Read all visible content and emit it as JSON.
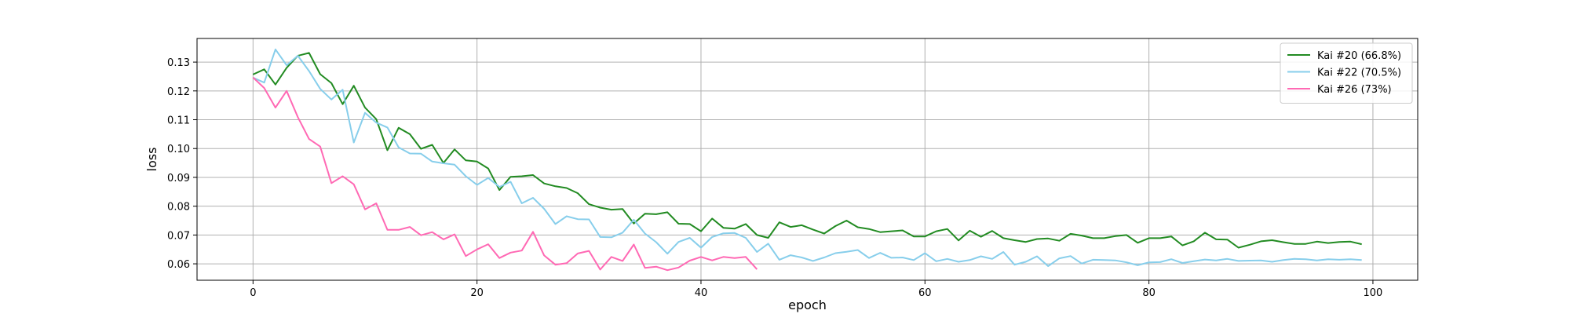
{
  "chart_data": {
    "type": "line",
    "title": "",
    "xlabel": "epoch",
    "ylabel": "loss",
    "xlim": [
      -5,
      104
    ],
    "ylim": [
      0.0543,
      0.1382
    ],
    "xticks": [
      0,
      20,
      40,
      60,
      80,
      100
    ],
    "yticks": [
      0.06,
      0.07,
      0.08,
      0.09,
      0.1,
      0.11,
      0.12,
      0.13
    ],
    "ytick_labels": [
      "0.06",
      "0.07",
      "0.08",
      "0.09",
      "0.10",
      "0.11",
      "0.12",
      "0.13"
    ],
    "grid": true,
    "legend_position": "top-right",
    "series": [
      {
        "name": "Kai #20 (66.8%)",
        "color": "#228b22",
        "values": [
          0.1257,
          0.1275,
          0.1222,
          0.128,
          0.1322,
          0.1332,
          0.1258,
          0.1227,
          0.1154,
          0.1218,
          0.1142,
          0.1102,
          0.0994,
          0.1072,
          0.105,
          0.0999,
          0.1013,
          0.095,
          0.0997,
          0.0959,
          0.0955,
          0.0931,
          0.0856,
          0.0902,
          0.0904,
          0.0908,
          0.0879,
          0.0869,
          0.0863,
          0.0845,
          0.0807,
          0.0795,
          0.0788,
          0.079,
          0.074,
          0.0774,
          0.0772,
          0.0779,
          0.0739,
          0.0738,
          0.0713,
          0.0757,
          0.0725,
          0.0722,
          0.0738,
          0.07,
          0.069,
          0.0744,
          0.0728,
          0.0734,
          0.0719,
          0.0705,
          0.0731,
          0.075,
          0.0727,
          0.0721,
          0.071,
          0.0713,
          0.0716,
          0.0695,
          0.0695,
          0.0713,
          0.0721,
          0.0681,
          0.0715,
          0.0694,
          0.0714,
          0.0689,
          0.0682,
          0.0676,
          0.0686,
          0.0688,
          0.068,
          0.0704,
          0.0698,
          0.0689,
          0.0689,
          0.0696,
          0.07,
          0.0673,
          0.0689,
          0.0689,
          0.0695,
          0.0664,
          0.0678,
          0.0708,
          0.0685,
          0.0684,
          0.0656,
          0.0666,
          0.0678,
          0.0682,
          0.0675,
          0.0669,
          0.0669,
          0.0677,
          0.0672,
          0.0676,
          0.0677,
          0.0668
        ]
      },
      {
        "name": "Kai #22 (70.5%)",
        "color": "#87ceeb",
        "values": [
          0.1246,
          0.1229,
          0.1344,
          0.1289,
          0.1322,
          0.1269,
          0.1207,
          0.117,
          0.1204,
          0.1021,
          0.1124,
          0.109,
          0.1073,
          0.1004,
          0.0983,
          0.0982,
          0.0955,
          0.0949,
          0.0944,
          0.0904,
          0.0874,
          0.0898,
          0.0867,
          0.0885,
          0.081,
          0.0829,
          0.0791,
          0.0738,
          0.0765,
          0.0755,
          0.0754,
          0.0693,
          0.0692,
          0.0708,
          0.0753,
          0.0705,
          0.0675,
          0.0635,
          0.0676,
          0.069,
          0.0656,
          0.0693,
          0.0706,
          0.0707,
          0.069,
          0.0641,
          0.067,
          0.0614,
          0.063,
          0.0622,
          0.061,
          0.0622,
          0.0637,
          0.0642,
          0.0648,
          0.062,
          0.0638,
          0.0621,
          0.0622,
          0.0613,
          0.0637,
          0.0609,
          0.0617,
          0.0607,
          0.0613,
          0.0626,
          0.0617,
          0.0641,
          0.0597,
          0.0607,
          0.0626,
          0.0592,
          0.0619,
          0.0627,
          0.0601,
          0.0614,
          0.0613,
          0.0612,
          0.0605,
          0.0595,
          0.0605,
          0.0606,
          0.0616,
          0.0603,
          0.0609,
          0.0615,
          0.0612,
          0.0617,
          0.061,
          0.0611,
          0.0612,
          0.0607,
          0.0613,
          0.0617,
          0.0616,
          0.0612,
          0.0616,
          0.0614,
          0.0616,
          0.0613
        ]
      },
      {
        "name": "Kai #26 (73%)",
        "color": "#ff69b4",
        "values": [
          0.1247,
          0.121,
          0.1142,
          0.12,
          0.1109,
          0.1033,
          0.1007,
          0.088,
          0.0904,
          0.0876,
          0.0789,
          0.081,
          0.0718,
          0.0718,
          0.0728,
          0.0699,
          0.071,
          0.0685,
          0.0702,
          0.0627,
          0.065,
          0.0668,
          0.062,
          0.0639,
          0.0646,
          0.0711,
          0.0629,
          0.0597,
          0.0602,
          0.0636,
          0.0645,
          0.058,
          0.0624,
          0.061,
          0.0667,
          0.0586,
          0.059,
          0.0578,
          0.0587,
          0.0611,
          0.0624,
          0.0612,
          0.0624,
          0.062,
          0.0624,
          0.0581
        ]
      }
    ]
  }
}
